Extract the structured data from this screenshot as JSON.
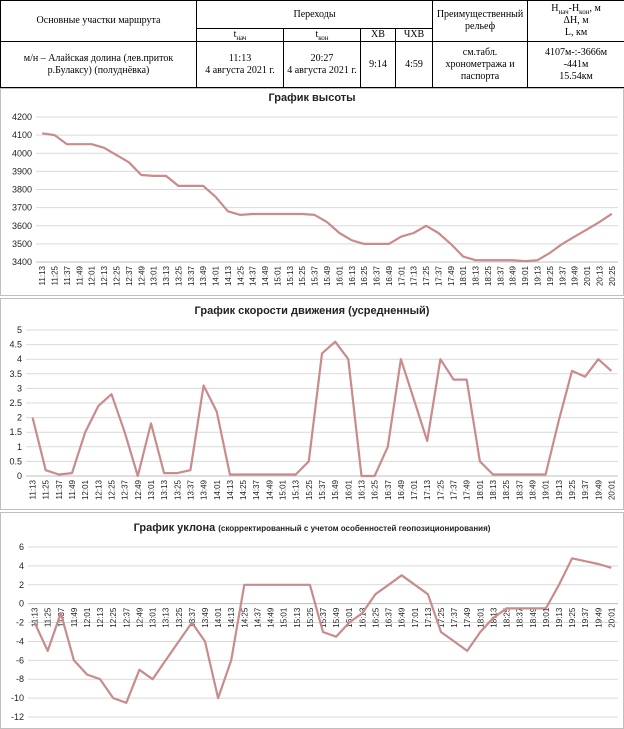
{
  "table": {
    "headers": {
      "route": "Основные участки маршрута",
      "transitions": "Переходы",
      "t_start": [
        "t",
        "нач"
      ],
      "t_end": [
        "t",
        "кон"
      ],
      "hv": "ХВ",
      "chv": "ЧХВ",
      "relief": "Преимущественный рельеф",
      "h": [
        "H",
        "нач",
        "-H",
        "кон",
        ", м"
      ],
      "dh": "ΔH, м",
      "l": "L, км"
    },
    "row": {
      "route": "м/н – Алайская долина (лев.приток р.Булаксу) (полуднёвка)",
      "t_start_time": "11:13",
      "t_start_date": "4 августа 2021 г.",
      "t_end_time": "20:27",
      "t_end_date": "4 августа 2021 г.",
      "hv": "9:14",
      "chv": "4:59",
      "relief": "см.табл. хронометража и паспорта",
      "h": "4107м-:-3666м",
      "dh": "-441м",
      "l": "15.54км"
    }
  },
  "chart_data": [
    {
      "type": "line",
      "title": "График высоты",
      "color": "#c98b8b",
      "grid": true,
      "categories": [
        "11:13",
        "11:25",
        "11:37",
        "11:49",
        "12:01",
        "12:13",
        "12:25",
        "12:37",
        "12:49",
        "13:01",
        "13:13",
        "13:25",
        "13:37",
        "13:49",
        "14:01",
        "14:13",
        "14:25",
        "14:37",
        "14:49",
        "15:01",
        "15:13",
        "15:25",
        "15:37",
        "15:49",
        "16:01",
        "16:13",
        "16:25",
        "16:37",
        "16:49",
        "17:01",
        "17:13",
        "17:25",
        "17:37",
        "17:49",
        "18:01",
        "18:13",
        "18:25",
        "18:37",
        "18:49",
        "19:01",
        "19:13",
        "19:25",
        "19:37",
        "19:49",
        "20:01",
        "20:13",
        "20:25"
      ],
      "values": [
        4110,
        4100,
        4050,
        4050,
        4050,
        4030,
        3990,
        3950,
        3880,
        3875,
        3875,
        3820,
        3820,
        3820,
        3760,
        3680,
        3660,
        3665,
        3665,
        3665,
        3665,
        3665,
        3660,
        3620,
        3560,
        3520,
        3500,
        3500,
        3500,
        3540,
        3560,
        3600,
        3560,
        3500,
        3430,
        3410,
        3410,
        3410,
        3410,
        3405,
        3410,
        3450,
        3500,
        3540,
        3580,
        3620,
        3666
      ],
      "ylim": [
        3400,
        4200
      ],
      "yticks": [
        3400,
        3500,
        3600,
        3700,
        3800,
        3900,
        4000,
        4100,
        4200
      ]
    },
    {
      "type": "line",
      "title": "График скорости движения (усредненный)",
      "color": "#c98b8b",
      "grid": true,
      "categories": [
        "11:13",
        "11:25",
        "11:37",
        "11:49",
        "12:01",
        "12:13",
        "12:25",
        "12:37",
        "12:49",
        "13:01",
        "13:13",
        "13:25",
        "13:37",
        "13:49",
        "14:01",
        "14:13",
        "14:25",
        "14:37",
        "14:49",
        "15:01",
        "15:13",
        "15:25",
        "15:37",
        "15:49",
        "16:01",
        "16:13",
        "16:25",
        "16:37",
        "16:49",
        "17:01",
        "17:13",
        "17:25",
        "17:37",
        "17:49",
        "18:01",
        "18:13",
        "18:25",
        "18:37",
        "18:49",
        "19:01",
        "19:13",
        "19:25",
        "19:37",
        "19:49",
        "20:01"
      ],
      "values": [
        2.0,
        0.2,
        0.05,
        0.1,
        1.5,
        2.4,
        2.8,
        1.5,
        0,
        1.8,
        0.1,
        0.1,
        0.2,
        3.1,
        2.2,
        0.05,
        0.05,
        0.05,
        0.05,
        0.05,
        0.05,
        0.5,
        4.2,
        4.6,
        4.0,
        0,
        0,
        1.0,
        4.0,
        2.6,
        1.2,
        4.0,
        3.3,
        3.3,
        0.5,
        0.05,
        0.05,
        0.05,
        0.05,
        0.05,
        1.9,
        3.6,
        3.4,
        4.0,
        3.6
      ],
      "ylim": [
        0,
        5
      ],
      "yticks": [
        0,
        0.5,
        1,
        1.5,
        2,
        2.5,
        3,
        3.5,
        4,
        4.5,
        5
      ]
    },
    {
      "type": "line",
      "title": "График уклона",
      "subtitle": "(скорректированный  с учетом  особенностей  геопозиционирования)",
      "color": "#c98b8b",
      "grid": true,
      "categories": [
        "11:13",
        "11:25",
        "11:37",
        "11:49",
        "12:01",
        "12:13",
        "12:25",
        "12:37",
        "12:49",
        "13:01",
        "13:13",
        "13:25",
        "13:37",
        "13:49",
        "14:01",
        "14:13",
        "14:25",
        "14:37",
        "14:49",
        "15:01",
        "15:13",
        "15:25",
        "15:37",
        "15:49",
        "16:01",
        "16:13",
        "16:25",
        "16:37",
        "16:49",
        "17:01",
        "17:13",
        "17:25",
        "17:37",
        "17:49",
        "18:01",
        "18:13",
        "18:25",
        "18:37",
        "18:49",
        "19:01",
        "19:13",
        "19:25",
        "19:37",
        "19:49",
        "20:01"
      ],
      "values": [
        -2,
        -5,
        -1,
        -6,
        -7.5,
        -8,
        -10,
        -10.5,
        -7,
        -8,
        -6,
        -4,
        -2,
        -4,
        -10,
        -6,
        2,
        2,
        2,
        2,
        2,
        2,
        -3,
        -3.5,
        -2,
        -1,
        1,
        2,
        3,
        2,
        1,
        -3,
        -4,
        -5,
        -3,
        -1.5,
        -0.5,
        -0.5,
        -0.5,
        -0.5,
        2,
        4.8,
        4.5,
        4.2,
        3.8
      ],
      "ylim": [
        -12,
        6
      ],
      "yticks": [
        -12,
        -10,
        -8,
        -6,
        -4,
        -2,
        0,
        2,
        4,
        6
      ]
    }
  ]
}
